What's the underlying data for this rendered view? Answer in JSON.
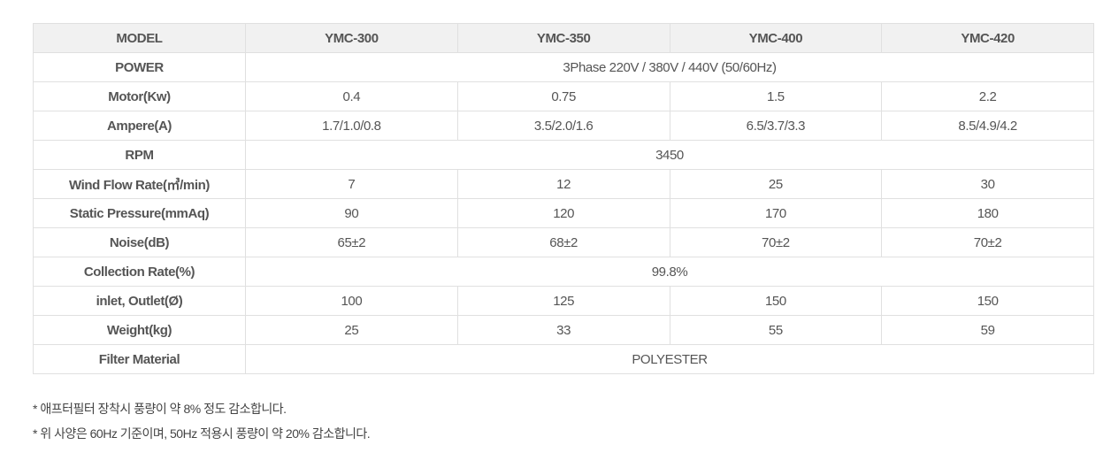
{
  "table": {
    "header": [
      "MODEL",
      "YMC-300",
      "YMC-350",
      "YMC-400",
      "YMC-420"
    ],
    "rows": [
      {
        "label": "POWER",
        "span": "3Phase 220V / 380V / 440V (50/60Hz)"
      },
      {
        "label": "Motor(Kw)",
        "values": [
          "0.4",
          "0.75",
          "1.5",
          "2.2"
        ]
      },
      {
        "label": "Ampere(A)",
        "values": [
          "1.7/1.0/0.8",
          "3.5/2.0/1.6",
          "6.5/3.7/3.3",
          "8.5/4.9/4.2"
        ]
      },
      {
        "label": "RPM",
        "span": "3450"
      },
      {
        "label": "Wind Flow Rate(㎥/min)",
        "values": [
          "7",
          "12",
          "25",
          "30"
        ]
      },
      {
        "label": "Static Pressure(mmAq)",
        "values": [
          "90",
          "120",
          "170",
          "180"
        ]
      },
      {
        "label": "Noise(dB)",
        "values": [
          "65±2",
          "68±2",
          "70±2",
          "70±2"
        ]
      },
      {
        "label": "Collection Rate(%)",
        "span": "99.8%"
      },
      {
        "label": "inlet, Outlet(Ø)",
        "values": [
          "100",
          "125",
          "150",
          "150"
        ]
      },
      {
        "label": "Weight(kg)",
        "values": [
          "25",
          "33",
          "55",
          "59"
        ]
      },
      {
        "label": "Filter Material",
        "span": "POLYESTER"
      }
    ]
  },
  "notes": [
    "* 애프터필터 장착시 풍량이 약 8% 정도 감소합니다.",
    "* 위 사양은 60Hz 기준이며, 50Hz 적용시 풍량이 약 20% 감소합니다."
  ]
}
